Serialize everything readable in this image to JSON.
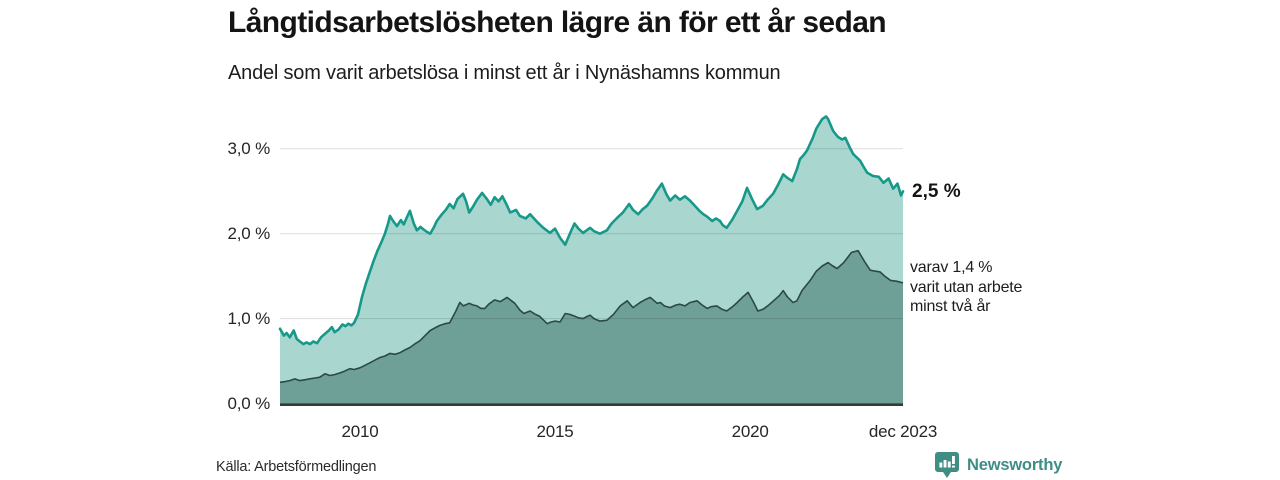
{
  "title": "Långtidsarbetslösheten lägre än för ett år sedan",
  "subtitle": "Andel som varit arbetslösa i minst ett år i Nynäshamns kommun",
  "source": "Källa: Arbetsförmedlingen",
  "branding": {
    "name": "Newsworthy",
    "color": "#3e8e84"
  },
  "annotations": {
    "total_end_label": "2,5 %",
    "subset_end_label_lines": [
      "varav 1,4 %",
      "varit utan arbete",
      "minst två år"
    ]
  },
  "chart_data": {
    "type": "area",
    "title": "Långtidsarbetslösheten lägre än för ett år sedan",
    "subtitle": "Andel som varit arbetslösa i minst ett år i Nynäshamns kommun",
    "unit": "%",
    "grid": true,
    "x_range_years": [
      2007.95,
      2023.92
    ],
    "y_range": [
      0,
      3.5
    ],
    "x_ticks": [
      {
        "label": "2010",
        "year": 2010
      },
      {
        "label": "2015",
        "year": 2015
      },
      {
        "label": "2020",
        "year": 2020
      },
      {
        "label": "dec 2023",
        "year": 2023.92
      }
    ],
    "y_ticks": [
      {
        "label": "3,0 %",
        "value": 3.0
      },
      {
        "label": "2,0 %",
        "value": 2.0
      },
      {
        "label": "1,0 %",
        "value": 1.0
      },
      {
        "label": "0,0 %",
        "value": 0.0
      }
    ],
    "colors": {
      "total_line": "#17998a",
      "total_fill": "#a9d7d0",
      "subset_line": "#2b4945",
      "subset_fill": "#6fa098",
      "baseline": "#333b39",
      "gridline": "rgba(0,0,0,0.13)"
    },
    "end_values": {
      "total": "2,5 %",
      "two_years": "1,4 %"
    },
    "series": [
      {
        "name": "Andel arbetslösa minst ett år (totalt)",
        "points": [
          [
            2007.95,
            0.88
          ],
          [
            2008.05,
            0.8
          ],
          [
            2008.12,
            0.83
          ],
          [
            2008.2,
            0.78
          ],
          [
            2008.3,
            0.86
          ],
          [
            2008.38,
            0.76
          ],
          [
            2008.46,
            0.73
          ],
          [
            2008.55,
            0.7
          ],
          [
            2008.63,
            0.72
          ],
          [
            2008.72,
            0.7
          ],
          [
            2008.8,
            0.73
          ],
          [
            2008.9,
            0.71
          ],
          [
            2009.0,
            0.78
          ],
          [
            2009.1,
            0.82
          ],
          [
            2009.2,
            0.86
          ],
          [
            2009.28,
            0.9
          ],
          [
            2009.35,
            0.84
          ],
          [
            2009.45,
            0.87
          ],
          [
            2009.55,
            0.93
          ],
          [
            2009.63,
            0.91
          ],
          [
            2009.7,
            0.94
          ],
          [
            2009.78,
            0.92
          ],
          [
            2009.85,
            0.95
          ],
          [
            2009.95,
            1.05
          ],
          [
            2010.05,
            1.25
          ],
          [
            2010.15,
            1.41
          ],
          [
            2010.26,
            1.56
          ],
          [
            2010.35,
            1.68
          ],
          [
            2010.45,
            1.8
          ],
          [
            2010.55,
            1.9
          ],
          [
            2010.64,
            2.0
          ],
          [
            2010.72,
            2.12
          ],
          [
            2010.77,
            2.21
          ],
          [
            2010.85,
            2.15
          ],
          [
            2010.95,
            2.09
          ],
          [
            2011.05,
            2.16
          ],
          [
            2011.12,
            2.11
          ],
          [
            2011.2,
            2.19
          ],
          [
            2011.28,
            2.27
          ],
          [
            2011.38,
            2.12
          ],
          [
            2011.46,
            2.04
          ],
          [
            2011.55,
            2.08
          ],
          [
            2011.63,
            2.05
          ],
          [
            2011.72,
            2.02
          ],
          [
            2011.8,
            2.0
          ],
          [
            2011.9,
            2.08
          ],
          [
            2011.97,
            2.15
          ],
          [
            2012.1,
            2.23
          ],
          [
            2012.2,
            2.28
          ],
          [
            2012.3,
            2.35
          ],
          [
            2012.4,
            2.3
          ],
          [
            2012.5,
            2.41
          ],
          [
            2012.64,
            2.47
          ],
          [
            2012.72,
            2.38
          ],
          [
            2012.8,
            2.25
          ],
          [
            2012.9,
            2.32
          ],
          [
            2013.0,
            2.4
          ],
          [
            2013.13,
            2.48
          ],
          [
            2013.25,
            2.41
          ],
          [
            2013.35,
            2.34
          ],
          [
            2013.45,
            2.43
          ],
          [
            2013.55,
            2.38
          ],
          [
            2013.65,
            2.44
          ],
          [
            2013.75,
            2.35
          ],
          [
            2013.85,
            2.25
          ],
          [
            2014.0,
            2.28
          ],
          [
            2014.1,
            2.21
          ],
          [
            2014.25,
            2.18
          ],
          [
            2014.36,
            2.23
          ],
          [
            2014.56,
            2.13
          ],
          [
            2014.7,
            2.07
          ],
          [
            2014.87,
            2.01
          ],
          [
            2015.0,
            2.06
          ],
          [
            2015.13,
            1.95
          ],
          [
            2015.26,
            1.87
          ],
          [
            2015.4,
            2.02
          ],
          [
            2015.5,
            2.12
          ],
          [
            2015.6,
            2.06
          ],
          [
            2015.72,
            2.01
          ],
          [
            2015.9,
            2.07
          ],
          [
            2016.0,
            2.03
          ],
          [
            2016.15,
            2.0
          ],
          [
            2016.33,
            2.04
          ],
          [
            2016.45,
            2.12
          ],
          [
            2016.6,
            2.19
          ],
          [
            2016.74,
            2.25
          ],
          [
            2016.9,
            2.35
          ],
          [
            2017.0,
            2.28
          ],
          [
            2017.13,
            2.23
          ],
          [
            2017.25,
            2.29
          ],
          [
            2017.36,
            2.33
          ],
          [
            2017.5,
            2.42
          ],
          [
            2017.6,
            2.5
          ],
          [
            2017.74,
            2.59
          ],
          [
            2017.85,
            2.47
          ],
          [
            2017.95,
            2.39
          ],
          [
            2018.08,
            2.45
          ],
          [
            2018.2,
            2.4
          ],
          [
            2018.33,
            2.44
          ],
          [
            2018.46,
            2.39
          ],
          [
            2018.6,
            2.32
          ],
          [
            2018.7,
            2.27
          ],
          [
            2018.8,
            2.23
          ],
          [
            2018.9,
            2.2
          ],
          [
            2019.03,
            2.15
          ],
          [
            2019.13,
            2.18
          ],
          [
            2019.23,
            2.15
          ],
          [
            2019.3,
            2.1
          ],
          [
            2019.4,
            2.07
          ],
          [
            2019.55,
            2.17
          ],
          [
            2019.67,
            2.27
          ],
          [
            2019.8,
            2.38
          ],
          [
            2019.92,
            2.54
          ],
          [
            2020.05,
            2.41
          ],
          [
            2020.18,
            2.29
          ],
          [
            2020.33,
            2.33
          ],
          [
            2020.45,
            2.4
          ],
          [
            2020.59,
            2.47
          ],
          [
            2020.72,
            2.58
          ],
          [
            2020.85,
            2.7
          ],
          [
            2020.95,
            2.66
          ],
          [
            2021.08,
            2.62
          ],
          [
            2021.2,
            2.76
          ],
          [
            2021.28,
            2.88
          ],
          [
            2021.38,
            2.93
          ],
          [
            2021.46,
            2.98
          ],
          [
            2021.6,
            3.12
          ],
          [
            2021.7,
            3.24
          ],
          [
            2021.85,
            3.35
          ],
          [
            2021.95,
            3.38
          ],
          [
            2022.0,
            3.35
          ],
          [
            2022.13,
            3.21
          ],
          [
            2022.25,
            3.14
          ],
          [
            2022.36,
            3.11
          ],
          [
            2022.44,
            3.13
          ],
          [
            2022.55,
            3.02
          ],
          [
            2022.64,
            2.94
          ],
          [
            2022.82,
            2.86
          ],
          [
            2022.92,
            2.78
          ],
          [
            2023.0,
            2.72
          ],
          [
            2023.15,
            2.68
          ],
          [
            2023.3,
            2.67
          ],
          [
            2023.42,
            2.6
          ],
          [
            2023.55,
            2.65
          ],
          [
            2023.67,
            2.53
          ],
          [
            2023.78,
            2.59
          ],
          [
            2023.87,
            2.45
          ],
          [
            2023.92,
            2.5
          ]
        ]
      },
      {
        "name": "varav utan arbete minst två år",
        "points": [
          [
            2007.95,
            0.25
          ],
          [
            2008.1,
            0.26
          ],
          [
            2008.2,
            0.27
          ],
          [
            2008.33,
            0.29
          ],
          [
            2008.46,
            0.27
          ],
          [
            2008.6,
            0.28
          ],
          [
            2008.7,
            0.29
          ],
          [
            2008.85,
            0.3
          ],
          [
            2008.97,
            0.31
          ],
          [
            2009.1,
            0.35
          ],
          [
            2009.23,
            0.33
          ],
          [
            2009.35,
            0.34
          ],
          [
            2009.49,
            0.36
          ],
          [
            2009.6,
            0.38
          ],
          [
            2009.74,
            0.41
          ],
          [
            2009.85,
            0.4
          ],
          [
            2010.0,
            0.42
          ],
          [
            2010.13,
            0.45
          ],
          [
            2010.26,
            0.48
          ],
          [
            2010.38,
            0.51
          ],
          [
            2010.5,
            0.54
          ],
          [
            2010.64,
            0.56
          ],
          [
            2010.77,
            0.59
          ],
          [
            2010.9,
            0.58
          ],
          [
            2011.03,
            0.6
          ],
          [
            2011.15,
            0.63
          ],
          [
            2011.28,
            0.66
          ],
          [
            2011.4,
            0.7
          ],
          [
            2011.54,
            0.74
          ],
          [
            2011.67,
            0.8
          ],
          [
            2011.8,
            0.86
          ],
          [
            2011.92,
            0.89
          ],
          [
            2012.05,
            0.92
          ],
          [
            2012.18,
            0.94
          ],
          [
            2012.3,
            0.95
          ],
          [
            2012.45,
            1.08
          ],
          [
            2012.56,
            1.19
          ],
          [
            2012.65,
            1.15
          ],
          [
            2012.8,
            1.18
          ],
          [
            2012.9,
            1.16
          ],
          [
            2013.0,
            1.15
          ],
          [
            2013.1,
            1.12
          ],
          [
            2013.2,
            1.12
          ],
          [
            2013.3,
            1.17
          ],
          [
            2013.45,
            1.22
          ],
          [
            2013.6,
            1.2
          ],
          [
            2013.77,
            1.25
          ],
          [
            2013.97,
            1.18
          ],
          [
            2014.1,
            1.1
          ],
          [
            2014.2,
            1.06
          ],
          [
            2014.36,
            1.09
          ],
          [
            2014.5,
            1.05
          ],
          [
            2014.6,
            1.03
          ],
          [
            2014.8,
            0.94
          ],
          [
            2014.9,
            0.96
          ],
          [
            2015.0,
            0.97
          ],
          [
            2015.13,
            0.96
          ],
          [
            2015.26,
            1.06
          ],
          [
            2015.38,
            1.05
          ],
          [
            2015.5,
            1.03
          ],
          [
            2015.6,
            1.01
          ],
          [
            2015.72,
            1.0
          ],
          [
            2015.8,
            1.02
          ],
          [
            2015.9,
            1.04
          ],
          [
            2016.0,
            1.0
          ],
          [
            2016.15,
            0.97
          ],
          [
            2016.33,
            0.98
          ],
          [
            2016.5,
            1.05
          ],
          [
            2016.67,
            1.15
          ],
          [
            2016.85,
            1.21
          ],
          [
            2017.0,
            1.13
          ],
          [
            2017.18,
            1.19
          ],
          [
            2017.3,
            1.22
          ],
          [
            2017.44,
            1.25
          ],
          [
            2017.62,
            1.18
          ],
          [
            2017.7,
            1.19
          ],
          [
            2017.8,
            1.15
          ],
          [
            2017.95,
            1.13
          ],
          [
            2018.1,
            1.16
          ],
          [
            2018.2,
            1.17
          ],
          [
            2018.33,
            1.15
          ],
          [
            2018.46,
            1.19
          ],
          [
            2018.64,
            1.21
          ],
          [
            2018.77,
            1.16
          ],
          [
            2018.9,
            1.12
          ],
          [
            2019.0,
            1.14
          ],
          [
            2019.15,
            1.15
          ],
          [
            2019.28,
            1.11
          ],
          [
            2019.4,
            1.09
          ],
          [
            2019.55,
            1.14
          ],
          [
            2019.67,
            1.19
          ],
          [
            2019.8,
            1.25
          ],
          [
            2019.95,
            1.31
          ],
          [
            2020.08,
            1.2
          ],
          [
            2020.2,
            1.09
          ],
          [
            2020.33,
            1.11
          ],
          [
            2020.48,
            1.16
          ],
          [
            2020.6,
            1.21
          ],
          [
            2020.75,
            1.27
          ],
          [
            2020.85,
            1.33
          ],
          [
            2020.95,
            1.26
          ],
          [
            2021.1,
            1.19
          ],
          [
            2021.2,
            1.21
          ],
          [
            2021.33,
            1.33
          ],
          [
            2021.54,
            1.45
          ],
          [
            2021.7,
            1.56
          ],
          [
            2021.85,
            1.62
          ],
          [
            2022.0,
            1.66
          ],
          [
            2022.12,
            1.62
          ],
          [
            2022.23,
            1.59
          ],
          [
            2022.4,
            1.66
          ],
          [
            2022.6,
            1.78
          ],
          [
            2022.77,
            1.8
          ],
          [
            2022.95,
            1.66
          ],
          [
            2023.08,
            1.57
          ],
          [
            2023.2,
            1.56
          ],
          [
            2023.33,
            1.55
          ],
          [
            2023.45,
            1.5
          ],
          [
            2023.6,
            1.45
          ],
          [
            2023.75,
            1.44
          ],
          [
            2023.92,
            1.42
          ]
        ]
      }
    ]
  }
}
